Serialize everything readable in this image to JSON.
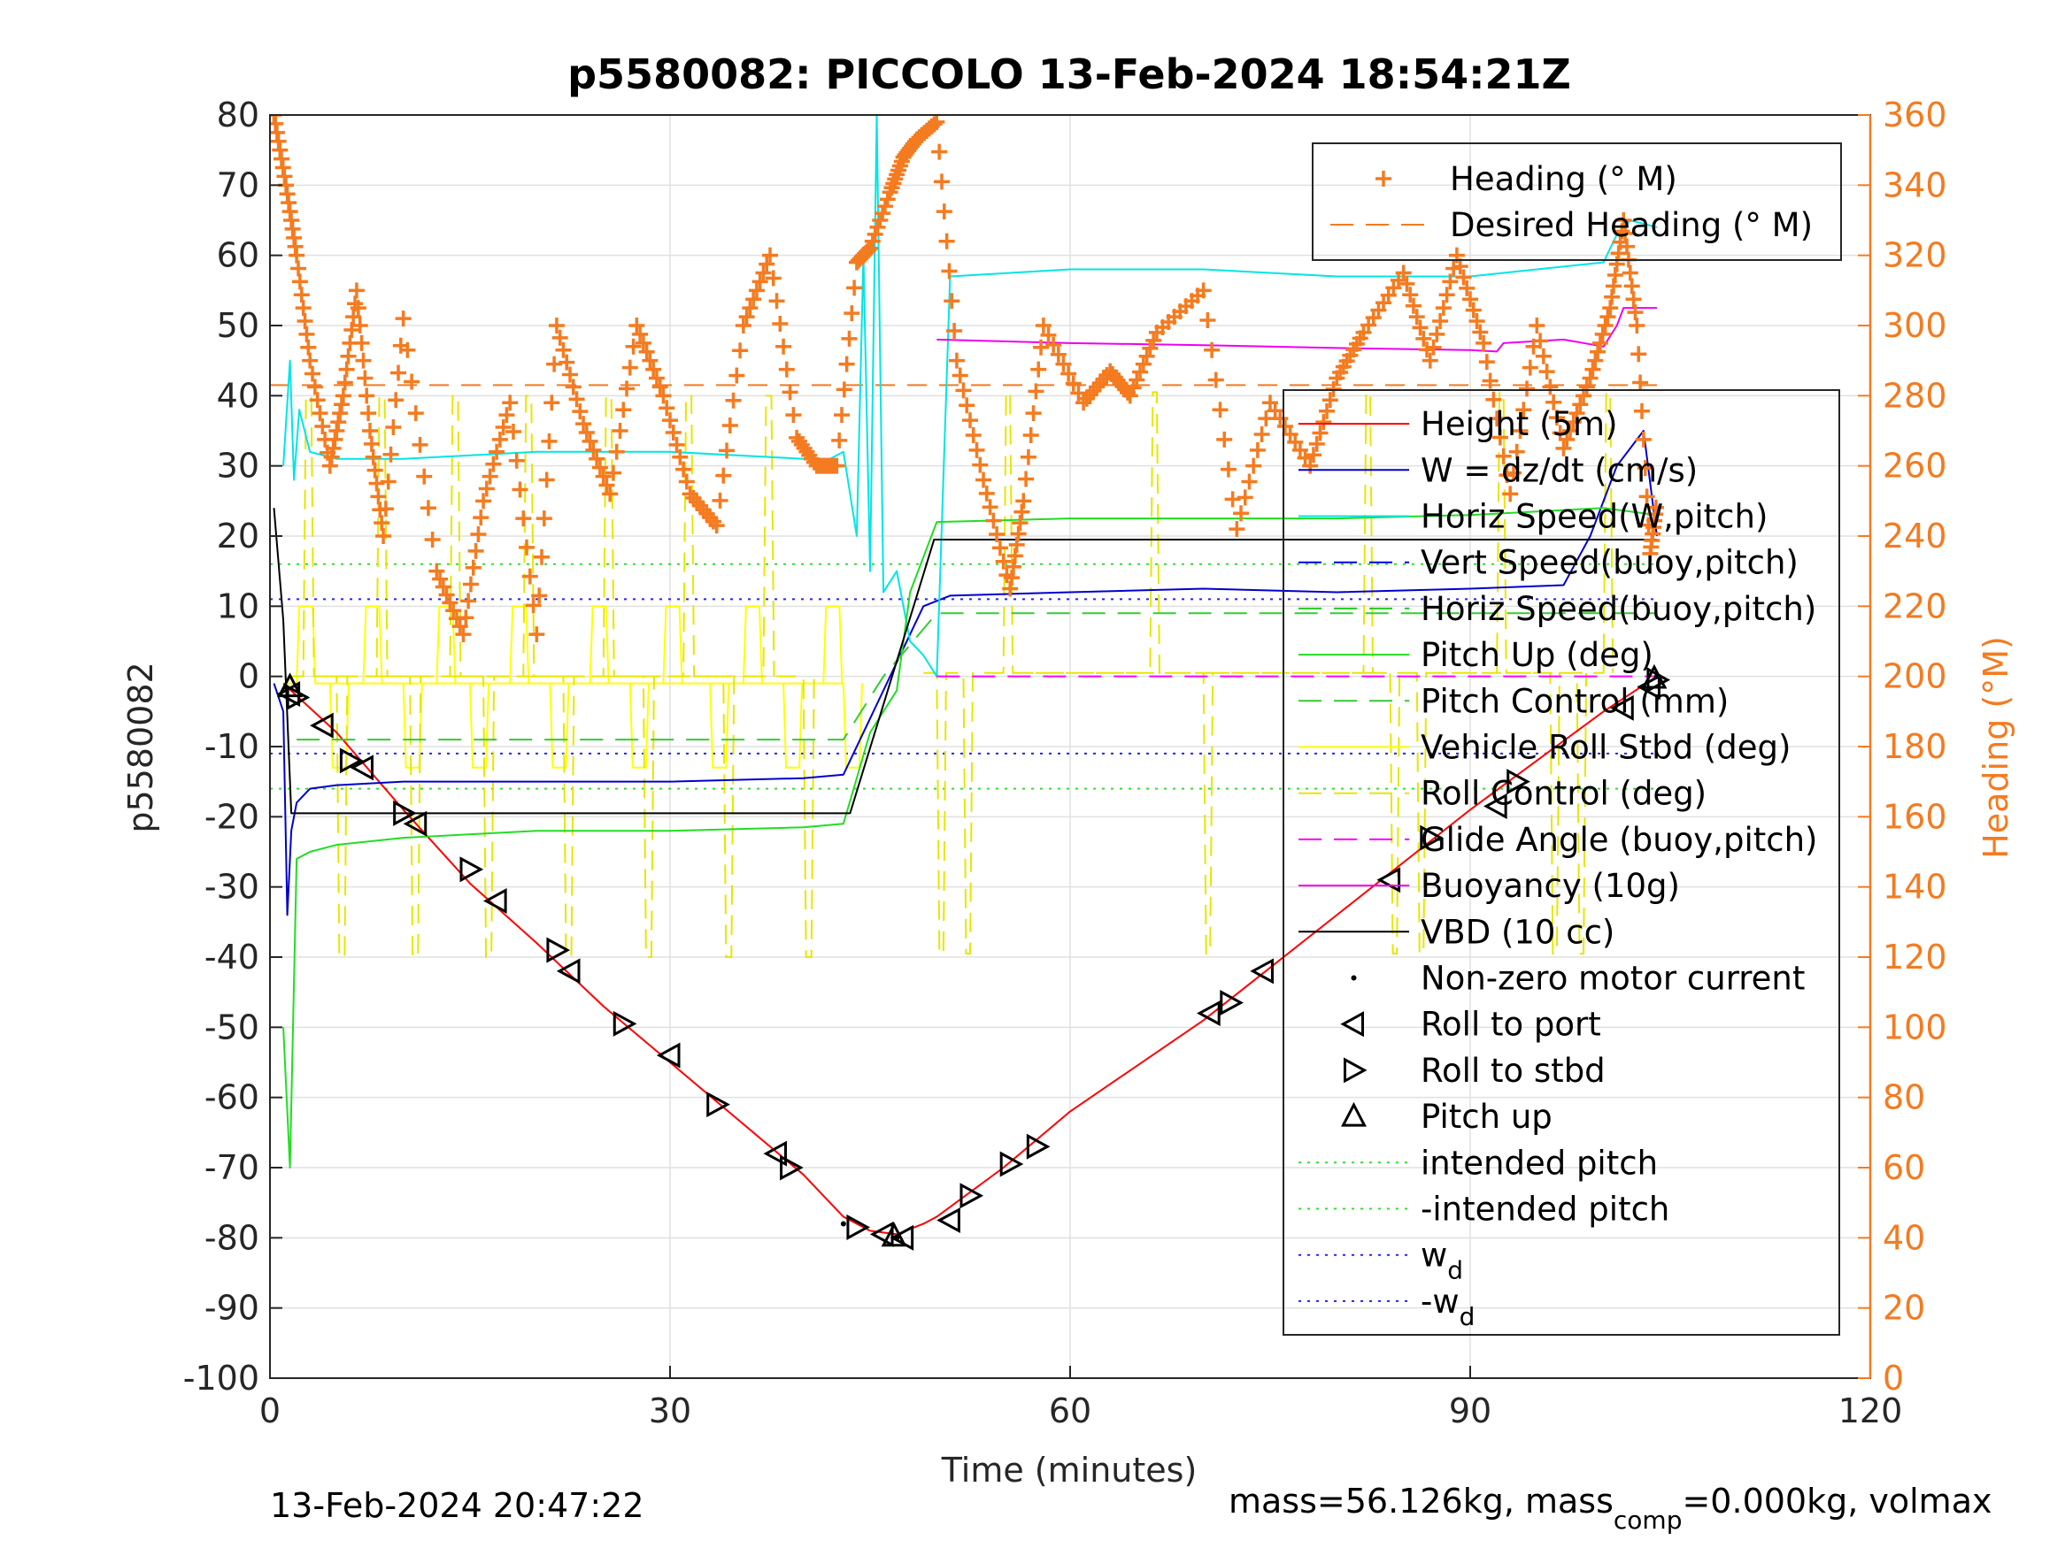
{
  "figure": {
    "title": "p5580082: PICCOLO 13-Feb-2024 18:54:21Z",
    "xlabel": "Time (minutes)",
    "ylabel_left": "p5580082",
    "ylabel_right": "Heading (°M)",
    "footer_left": "13-Feb-2024 20:47:22",
    "footer_right_parts": [
      "mass=56.126kg, mass",
      "comp",
      "=0.000kg, volmax"
    ]
  },
  "colors": {
    "heading": "#f47b20",
    "height": "#ff0000",
    "w": "#0000cc",
    "horiz_w": "#00e5e5",
    "vert_buoy": "#0000ee",
    "horiz_buoy": "#22cc22",
    "pitch_up": "#22dd22",
    "pitch_control": "#33cc33",
    "roll": "#ffff00",
    "roll_control": "#e6e600",
    "glide": "#ff00ff",
    "buoyancy": "#ee00ee",
    "vbd": "#000000",
    "intended_pitch": "#33dd33",
    "wd": "#2222ff"
  },
  "legend_top": [
    {
      "label": "Heading (° M)",
      "style": "plus",
      "color_key": "heading"
    },
    {
      "label": "Desired Heading (° M)",
      "style": "dash",
      "color_key": "heading"
    }
  ],
  "legend_main": [
    {
      "label": "Height (5m)",
      "style": "solid",
      "color_key": "height"
    },
    {
      "label": "W = dz/dt (cm/s)",
      "style": "solid",
      "color_key": "w"
    },
    {
      "label": "Horiz Speed(W,pitch)",
      "style": "solid",
      "color_key": "horiz_w"
    },
    {
      "label": "Vert Speed(buoy,pitch)",
      "style": "dash",
      "color_key": "vert_buoy"
    },
    {
      "label": "Horiz Speed(buoy,pitch)",
      "style": "dash",
      "color_key": "horiz_buoy"
    },
    {
      "label": "Pitch Up (deg)",
      "style": "solid",
      "color_key": "pitch_up"
    },
    {
      "label": "Pitch Control (mm)",
      "style": "dash",
      "color_key": "pitch_control"
    },
    {
      "label": "Vehicle Roll Stbd (deg)",
      "style": "solid",
      "color_key": "roll"
    },
    {
      "label": "Roll Control (deg)",
      "style": "dash",
      "color_key": "roll_control"
    },
    {
      "label": "Glide Angle (buoy,pitch)",
      "style": "dash",
      "color_key": "glide"
    },
    {
      "label": "Buoyancy (10g)",
      "style": "solid",
      "color_key": "buoyancy"
    },
    {
      "label": "VBD (10 cc)",
      "style": "solid",
      "color_key": "vbd"
    },
    {
      "label": "Non-zero motor current",
      "style": "dot",
      "color_key": "vbd"
    },
    {
      "label": "Roll to port",
      "style": "tri-left",
      "color_key": "vbd"
    },
    {
      "label": "Roll to stbd",
      "style": "tri-right",
      "color_key": "vbd"
    },
    {
      "label": "Pitch up",
      "style": "tri-up",
      "color_key": "vbd"
    },
    {
      "label": "intended pitch",
      "style": "dotted",
      "color_key": "intended_pitch"
    },
    {
      "label": "-intended pitch",
      "style": "dotted",
      "color_key": "intended_pitch"
    },
    {
      "label": "w",
      "sub": "d",
      "style": "dotted",
      "color_key": "wd"
    },
    {
      "label": "-w",
      "sub": "d",
      "style": "dotted",
      "color_key": "wd"
    }
  ],
  "chart_data": {
    "type": "line",
    "title": "p5580082: PICCOLO 13-Feb-2024 18:54:21Z",
    "xlabel": "Time (minutes)",
    "ylabel": "p5580082",
    "ylabel_right": "Heading (°M)",
    "xlim": [
      0,
      120
    ],
    "ylim": [
      -100,
      80
    ],
    "ylim_right": [
      0,
      360
    ],
    "xticks": [
      0,
      30,
      60,
      90,
      120
    ],
    "yticks": [
      80,
      70,
      60,
      50,
      40,
      30,
      20,
      10,
      0,
      -10,
      -20,
      -30,
      -40,
      -50,
      -60,
      -70,
      -80,
      -90,
      -100
    ],
    "yticks_right": [
      360,
      340,
      320,
      300,
      280,
      260,
      240,
      220,
      200,
      180,
      160,
      140,
      120,
      100,
      80,
      60,
      40,
      20,
      0
    ],
    "grid": true,
    "legend_placement": "top-right",
    "reference_lines": [
      {
        "name": "intended pitch",
        "y": 16
      },
      {
        "name": "-intended pitch",
        "y": -16
      },
      {
        "name": "w_d",
        "y": 11
      },
      {
        "name": "-w_d",
        "y": -11
      },
      {
        "name": "Desired Heading (° M)",
        "y_right": 283
      }
    ],
    "series": [
      {
        "name": "Height (5m)",
        "axis": "left",
        "x": [
          1,
          5,
          10,
          15,
          20,
          25,
          30,
          35,
          40,
          43,
          45,
          47,
          49,
          50,
          55,
          60,
          70,
          80,
          90,
          95,
          100,
          104
        ],
        "y": [
          -1,
          -8,
          -19,
          -29.5,
          -38,
          -47,
          -55,
          -63,
          -71,
          -77,
          -79,
          -79.5,
          -78,
          -77,
          -70,
          -62,
          -49,
          -34,
          -19,
          -12,
          -5,
          0
        ]
      },
      {
        "name": "W = dz/dt (cm/s)",
        "axis": "left",
        "x": [
          0.3,
          1,
          1.3,
          1.6,
          2,
          3,
          5,
          10,
          20,
          30,
          40,
          43,
          45,
          47,
          49,
          51,
          60,
          70,
          80,
          90,
          97,
          99,
          101,
          103,
          104
        ],
        "y": [
          -1,
          -5,
          -34,
          -22,
          -18,
          -16,
          -15.5,
          -15,
          -15,
          -15,
          -14.5,
          -14,
          -6,
          2,
          10,
          11.5,
          12,
          12.5,
          12,
          12.5,
          13,
          20,
          30,
          35,
          20
        ]
      },
      {
        "name": "Horiz Speed(W,pitch)",
        "axis": "left",
        "x": [
          1,
          1.5,
          1.8,
          2.2,
          3,
          5,
          10,
          20,
          30,
          40,
          42,
          43,
          44,
          44.5,
          45,
          45.5,
          46,
          47,
          48,
          49,
          50,
          51,
          60,
          70,
          80,
          90,
          95,
          100,
          101,
          102,
          104
        ],
        "y": [
          30,
          45,
          28,
          38,
          32,
          31,
          31,
          32,
          32,
          31,
          31,
          32,
          20,
          60,
          15,
          80,
          12,
          15,
          5,
          3,
          0,
          57,
          58,
          58,
          57,
          57,
          58,
          59,
          63,
          65,
          64
        ]
      },
      {
        "name": "Horiz Speed(buoy,pitch)",
        "axis": "left",
        "x": [
          1,
          1.5,
          2,
          3,
          5,
          10,
          20,
          30,
          40,
          43,
          45,
          47,
          48,
          50,
          60,
          70,
          80,
          90,
          100,
          104
        ],
        "y": [
          -50,
          -70,
          -26,
          -25,
          -24,
          -23,
          -22,
          -22,
          -21.5,
          -21,
          -8,
          -2,
          12,
          22,
          22.5,
          22.5,
          22.5,
          23,
          24,
          23
        ]
      },
      {
        "name": "Pitch Control (mm)",
        "axis": "left",
        "x": [
          2,
          43,
          46,
          50,
          104
        ],
        "y": [
          -9,
          -9,
          0,
          9,
          9
        ]
      },
      {
        "name": "Glide Angle (buoy,pitch)",
        "axis": "left",
        "x": [
          50,
          104
        ],
        "y": [
          0,
          0
        ]
      },
      {
        "name": "Buoyancy (10g)",
        "axis": "left",
        "x": [
          50,
          60,
          70,
          80,
          90,
          92,
          92.5,
          97,
          100,
          101,
          101.5,
          104
        ],
        "y": [
          48,
          47.5,
          47.2,
          46.8,
          46.5,
          46.3,
          47.5,
          48,
          47,
          50,
          52.5,
          52.5
        ]
      },
      {
        "name": "VBD (10 cc)",
        "axis": "left",
        "x": [
          0.3,
          1,
          1.6,
          43.5,
          49.8,
          104
        ],
        "y": [
          24,
          8,
          -19.5,
          -19.5,
          19.5,
          19.5
        ]
      },
      {
        "name": "Heading (° M)",
        "axis": "right",
        "x": [
          0.3,
          1.2,
          2,
          3,
          4.5,
          5.5,
          6.5,
          7.5,
          8.5,
          10,
          12.5,
          14.5,
          16,
          18,
          20,
          21.5,
          23.5,
          25.5,
          27.5,
          29.5,
          31.5,
          33.5,
          35.5,
          37.5,
          39.5,
          41,
          42.5,
          44,
          45,
          46.5,
          47.5,
          48.5,
          50,
          51.5,
          53.5,
          55.5,
          56.5,
          58,
          61,
          63,
          64.5,
          66.5,
          70,
          72.5,
          75,
          78,
          80,
          82,
          85,
          87,
          89,
          91,
          93,
          95,
          97,
          99,
          100.5,
          101.5,
          102.5,
          103.5,
          104
        ],
        "y": [
          360,
          340,
          320,
          290,
          260,
          280,
          310,
          270,
          240,
          302,
          230,
          212,
          250,
          278,
          212,
          300,
          272,
          252,
          300,
          280,
          252,
          243,
          300,
          320,
          268,
          260,
          260,
          318,
          322,
          338,
          348,
          353,
          358,
          290,
          256,
          225,
          250,
          300,
          278,
          287,
          280,
          298,
          310,
          242,
          278,
          260,
          285,
          298,
          315,
          290,
          320,
          295,
          252,
          300,
          265,
          285,
          305,
          330,
          300,
          235,
          250
        ]
      }
    ],
    "markers": {
      "roll_to_port": [
        [
          1.5,
          -2.5
        ],
        [
          4,
          -7
        ],
        [
          7,
          -13
        ],
        [
          11,
          -21
        ],
        [
          17,
          -32
        ],
        [
          22.5,
          -42
        ],
        [
          30,
          -54
        ],
        [
          38,
          -68
        ],
        [
          46,
          -79.5
        ],
        [
          47.5,
          -80
        ],
        [
          51,
          -77.5
        ],
        [
          70.5,
          -48
        ],
        [
          74.5,
          -42
        ],
        [
          84,
          -29
        ],
        [
          92,
          -18.5
        ],
        [
          101.5,
          -4.5
        ],
        [
          103.5,
          -1.5
        ]
      ],
      "roll_to_stbd": [
        [
          2,
          -3
        ],
        [
          6,
          -12
        ],
        [
          10,
          -19.5
        ],
        [
          15,
          -27.5
        ],
        [
          21.5,
          -39
        ],
        [
          26.5,
          -49.5
        ],
        [
          33.5,
          -61
        ],
        [
          39,
          -70
        ],
        [
          44,
          -78.5
        ],
        [
          52.5,
          -74
        ],
        [
          55.5,
          -69.5
        ],
        [
          57.5,
          -67
        ],
        [
          72,
          -46.5
        ],
        [
          87,
          -23
        ],
        [
          93.5,
          -15
        ],
        [
          104,
          -0.5
        ]
      ],
      "pitch_up": [
        [
          1.5,
          -1.5
        ],
        [
          46.8,
          -79.8
        ],
        [
          103.8,
          -0.3
        ]
      ],
      "motor_current": [
        [
          1.2,
          -1.5
        ],
        [
          43,
          -78
        ],
        [
          47,
          -80
        ],
        [
          104,
          0
        ]
      ]
    }
  }
}
